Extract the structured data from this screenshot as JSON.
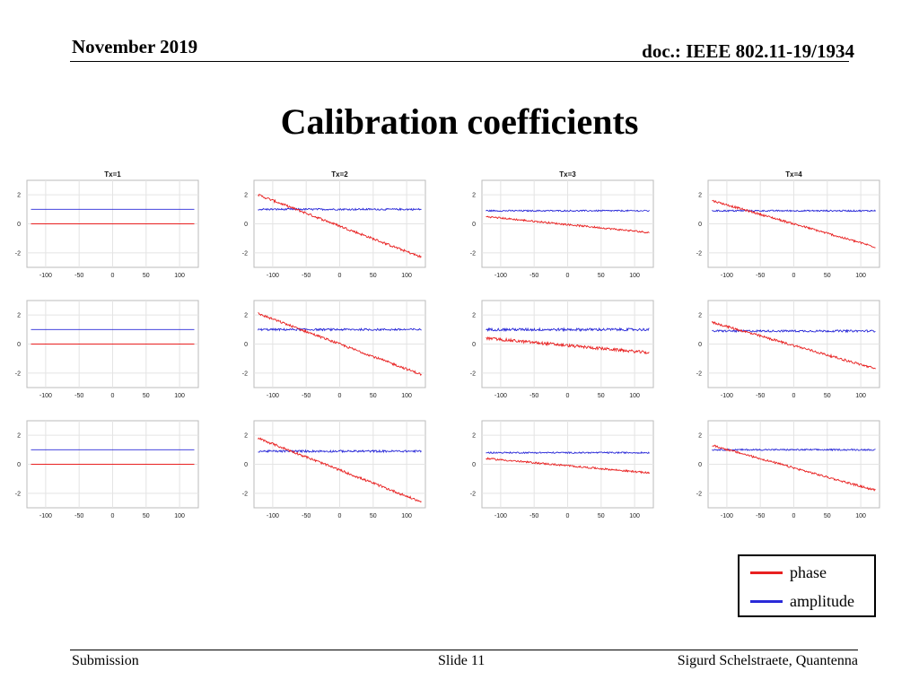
{
  "header": {
    "date": "November 2019",
    "doc": "doc.: IEEE 802.11-19/1934"
  },
  "title": "Calibration coefficients",
  "footer": {
    "left": "Submission",
    "center": "Slide 11",
    "right": "Sigurd Schelstraete, Quantenna"
  },
  "legend": [
    {
      "label": "phase",
      "color": "#e82020"
    },
    {
      "label": "amplitude",
      "color": "#2a2ad8"
    }
  ],
  "chart_data": {
    "type": "line",
    "layout": "3 rows x 4 columns",
    "column_titles": [
      "Tx=1",
      "Tx=2",
      "Tx=3",
      "Tx=4"
    ],
    "xlim": [
      -128,
      128
    ],
    "ylim": [
      -3,
      3
    ],
    "xticks": [
      -100,
      -50,
      0,
      50,
      100
    ],
    "yticks": [
      2,
      0,
      -2
    ],
    "xtick_labels": [
      "-100",
      "-50",
      "0",
      "50",
      "100"
    ],
    "ytick_labels": [
      "2",
      "0",
      "-2"
    ],
    "series_names": [
      "phase",
      "amplitude"
    ],
    "series_colors": {
      "phase": "#e82020",
      "amplitude": "#2a2ad8"
    },
    "panels": [
      {
        "row": 1,
        "col": 1,
        "phase": {
          "start": 0.0,
          "end": 0.0,
          "noise": 0.0
        },
        "amplitude": {
          "level": 1.0,
          "noise": 0.0
        }
      },
      {
        "row": 1,
        "col": 2,
        "phase": {
          "start": 2.0,
          "end": -2.3,
          "noise": 0.08
        },
        "amplitude": {
          "level": 1.0,
          "noise": 0.06
        }
      },
      {
        "row": 1,
        "col": 3,
        "phase": {
          "start": 0.5,
          "end": -0.6,
          "noise": 0.06
        },
        "amplitude": {
          "level": 0.9,
          "noise": 0.05
        }
      },
      {
        "row": 1,
        "col": 4,
        "phase": {
          "start": 1.6,
          "end": -1.6,
          "noise": 0.07
        },
        "amplitude": {
          "level": 0.9,
          "noise": 0.05
        }
      },
      {
        "row": 2,
        "col": 1,
        "phase": {
          "start": 0.0,
          "end": 0.0,
          "noise": 0.0
        },
        "amplitude": {
          "level": 1.0,
          "noise": 0.0
        }
      },
      {
        "row": 2,
        "col": 2,
        "phase": {
          "start": 2.1,
          "end": -2.1,
          "noise": 0.08
        },
        "amplitude": {
          "level": 1.0,
          "noise": 0.07
        }
      },
      {
        "row": 2,
        "col": 3,
        "phase": {
          "start": 0.4,
          "end": -0.6,
          "noise": 0.1
        },
        "amplitude": {
          "level": 1.0,
          "noise": 0.09
        }
      },
      {
        "row": 2,
        "col": 4,
        "phase": {
          "start": 1.5,
          "end": -1.7,
          "noise": 0.08
        },
        "amplitude": {
          "level": 0.9,
          "noise": 0.07
        }
      },
      {
        "row": 3,
        "col": 1,
        "phase": {
          "start": 0.0,
          "end": 0.0,
          "noise": 0.0
        },
        "amplitude": {
          "level": 1.0,
          "noise": 0.0
        }
      },
      {
        "row": 3,
        "col": 2,
        "phase": {
          "start": 1.8,
          "end": -2.6,
          "noise": 0.08
        },
        "amplitude": {
          "level": 0.9,
          "noise": 0.07
        }
      },
      {
        "row": 3,
        "col": 3,
        "phase": {
          "start": 0.4,
          "end": -0.6,
          "noise": 0.06
        },
        "amplitude": {
          "level": 0.8,
          "noise": 0.05
        }
      },
      {
        "row": 3,
        "col": 4,
        "phase": {
          "start": 1.3,
          "end": -1.8,
          "noise": 0.07
        },
        "amplitude": {
          "level": 1.0,
          "noise": 0.05
        }
      }
    ]
  }
}
